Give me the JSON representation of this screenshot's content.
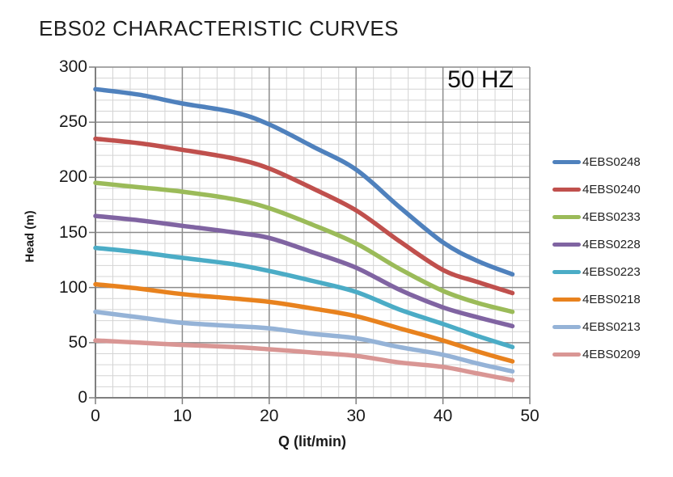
{
  "chart_data": {
    "type": "line",
    "title": "EBS02 CHARACTERISTIC CURVES",
    "annotation": "50 HZ",
    "xlabel": "Q (lit/min)",
    "ylabel": "Head (m)",
    "xlim": [
      0,
      50
    ],
    "ylim": [
      0,
      300
    ],
    "x_ticks": [
      0,
      10,
      20,
      30,
      40,
      50
    ],
    "y_ticks": [
      0,
      50,
      100,
      150,
      200,
      250,
      300
    ],
    "x_minor_step": 2,
    "y_minor_step": 10,
    "grid": true,
    "legend_position": "right",
    "x": [
      0,
      5,
      10,
      16,
      20,
      25,
      30,
      35,
      40,
      44,
      48
    ],
    "series": [
      {
        "name": "4EBS0248",
        "color": "#4F81BD",
        "values": [
          280,
          275,
          267,
          259,
          248,
          228,
          207,
          173,
          141,
          124,
          112
        ]
      },
      {
        "name": "4EBS0240",
        "color": "#C0504D",
        "values": [
          235,
          231,
          225,
          217,
          208,
          190,
          170,
          142,
          116,
          105,
          95
        ]
      },
      {
        "name": "4EBS0233",
        "color": "#9BBB59",
        "values": [
          195,
          191,
          187,
          180,
          172,
          157,
          140,
          117,
          97,
          86,
          78
        ]
      },
      {
        "name": "4EBS0228",
        "color": "#8064A2",
        "values": [
          165,
          161,
          156,
          150,
          145,
          132,
          118,
          98,
          82,
          73,
          65
        ]
      },
      {
        "name": "4EBS0223",
        "color": "#4BACC6",
        "values": [
          136,
          132,
          127,
          121,
          115,
          106,
          96,
          80,
          67,
          56,
          46
        ]
      },
      {
        "name": "4EBS0218",
        "color": "#E8821E",
        "values": [
          103,
          99,
          94,
          90,
          87,
          81,
          74,
          63,
          52,
          42,
          33
        ]
      },
      {
        "name": "4EBS0213",
        "color": "#95B3D7",
        "values": [
          78,
          73,
          68,
          65,
          63,
          58,
          54,
          46,
          39,
          31,
          24
        ]
      },
      {
        "name": "4EBS0209",
        "color": "#D99694",
        "values": [
          52,
          50,
          48,
          46,
          44,
          41,
          38,
          32,
          28,
          22,
          16
        ]
      }
    ]
  }
}
